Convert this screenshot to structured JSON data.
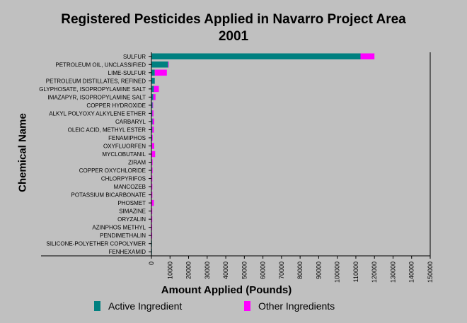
{
  "chart_data": {
    "type": "bar",
    "orientation": "horizontal",
    "stacked": true,
    "title_line1": "Registered Pesticides Applied in Navarro Project Area",
    "title_line2": "2001",
    "xlabel": "Amount Applied (Pounds)",
    "ylabel": "Chemical Name",
    "xlim": [
      0,
      150000
    ],
    "xticks": [
      "0",
      "10000",
      "20000",
      "30000",
      "40000",
      "50000",
      "60000",
      "70000",
      "80000",
      "90000",
      "100000",
      "110000",
      "120000",
      "130000",
      "140000",
      "150000"
    ],
    "grid": false,
    "legend_position": "bottom",
    "categories": [
      "SULFUR",
      "PETROLEUM OIL, UNCLASSIFIED",
      "LIME-SULFUR",
      "PETROLEUM DISTILLATES, REFINED",
      "GLYPHOSATE, ISOPROPYLAMINE SALT",
      "IMAZAPYR, ISOPROPYLAMINE SALT",
      "COPPER HYDROXIDE",
      "ALKYL POLYOXY ALKYLENE ETHER",
      "CARBARYL",
      "OLEIC ACID, METHYL ESTER",
      "FENAMIPHOS",
      "OXYFLUORFEN",
      "MYCLOBUTANIL",
      "ZIRAM",
      "COPPER OXYCHLORIDE",
      "CHLORPYRIFOS",
      "MANCOZEB",
      "POTASSIUM BICARBONATE",
      "PHOSMET",
      "SIMAZINE",
      "ORYZALIN",
      "AZINPHOS METHYL",
      "PENDIMETHALIN",
      "SILICONE-POLYETHER COPOLYMER",
      "FENHEXAMID"
    ],
    "series": [
      {
        "name": "Active Ingredient",
        "color": "#008080",
        "values": [
          112500,
          9000,
          1800,
          1800,
          1300,
          1000,
          600,
          500,
          600,
          500,
          400,
          300,
          200,
          300,
          300,
          200,
          200,
          200,
          200,
          150,
          150,
          100,
          100,
          100,
          100
        ]
      },
      {
        "name": "Other Ingredients",
        "color": "#ff00ff",
        "values": [
          7500,
          200,
          6500,
          0,
          2700,
          1200,
          300,
          600,
          900,
          800,
          100,
          1200,
          1800,
          200,
          200,
          200,
          100,
          100,
          1100,
          100,
          100,
          100,
          100,
          0,
          0
        ]
      }
    ]
  },
  "legend": {
    "active_label": "Active Ingredient",
    "other_label": "Other Ingredients"
  }
}
